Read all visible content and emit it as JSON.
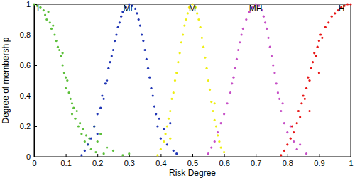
{
  "chart_data": {
    "type": "scatter",
    "x_label": "Risk Degree",
    "y_label": "Degree of membership",
    "xlim": [
      0,
      1
    ],
    "ylim": [
      0,
      1
    ],
    "xticks": [
      0,
      0.1,
      0.2,
      0.3,
      0.4,
      0.5,
      0.6,
      0.7,
      0.8,
      0.9,
      1
    ],
    "yticks": [
      0,
      0.2,
      0.4,
      0.6,
      0.8,
      1
    ],
    "marker": "circle",
    "series": [
      {
        "name": "L",
        "color": "#5cbf3a",
        "x": [
          0,
          0.01,
          0.02,
          0.03,
          0.035,
          0.04,
          0.045,
          0.05,
          0.055,
          0.06,
          0.065,
          0.07,
          0.075,
          0.08,
          0.085,
          0.09,
          0.09,
          0.095,
          0.1,
          0.1,
          0.105,
          0.11,
          0.115,
          0.12,
          0.12,
          0.125,
          0.13,
          0.135,
          0.14,
          0.145,
          0.15,
          0.155,
          0.16,
          0.165,
          0.17,
          0.175,
          0.18,
          0.19,
          0.195,
          0.2,
          0.21,
          0.22,
          0.23,
          0.25,
          0.28,
          0.3
        ],
        "values": [
          1,
          0.99,
          0.98,
          0.96,
          0.93,
          0.9,
          0.95,
          0.88,
          0.84,
          0.86,
          0.8,
          0.76,
          0.72,
          0.7,
          0.66,
          0.6,
          0.68,
          0.55,
          0.52,
          0.45,
          0.5,
          0.42,
          0.38,
          0.35,
          0.28,
          0.32,
          0.25,
          0.3,
          0.2,
          0.22,
          0.15,
          0.18,
          0.1,
          0.14,
          0.08,
          0.12,
          0.05,
          0.2,
          0.03,
          0.1,
          0.15,
          0.02,
          0.06,
          0.04,
          0.01,
          0.02
        ]
      },
      {
        "name": "ML",
        "color": "#1f35b5",
        "x": [
          0.15,
          0.16,
          0.17,
          0.18,
          0.19,
          0.2,
          0.2,
          0.21,
          0.215,
          0.22,
          0.225,
          0.23,
          0.235,
          0.24,
          0.245,
          0.25,
          0.255,
          0.26,
          0.265,
          0.27,
          0.275,
          0.28,
          0.29,
          0.3,
          0.31,
          0.32,
          0.325,
          0.33,
          0.335,
          0.34,
          0.345,
          0.35,
          0.355,
          0.36,
          0.365,
          0.37,
          0.375,
          0.38,
          0.385,
          0.39,
          0.395,
          0.4,
          0.41,
          0.42,
          0.43,
          0.44,
          0.45
        ],
        "values": [
          0.01,
          0.04,
          0.08,
          0.12,
          0.2,
          0.28,
          0.15,
          0.32,
          0.4,
          0.38,
          0.48,
          0.5,
          0.58,
          0.62,
          0.66,
          0.7,
          0.76,
          0.8,
          0.85,
          0.88,
          0.92,
          0.95,
          0.98,
          1,
          0.99,
          0.97,
          0.94,
          0.9,
          0.86,
          0.8,
          0.76,
          0.7,
          0.64,
          0.58,
          0.52,
          0.45,
          0.4,
          0.33,
          0.28,
          0.2,
          0.25,
          0.12,
          0.18,
          0.08,
          0.22,
          0.04,
          0.02
        ]
      },
      {
        "name": "M",
        "color": "#eeee11",
        "x": [
          0.39,
          0.4,
          0.41,
          0.415,
          0.42,
          0.425,
          0.43,
          0.435,
          0.44,
          0.445,
          0.45,
          0.455,
          0.46,
          0.465,
          0.47,
          0.475,
          0.48,
          0.485,
          0.49,
          0.5,
          0.51,
          0.515,
          0.52,
          0.525,
          0.53,
          0.535,
          0.54,
          0.545,
          0.55,
          0.555,
          0.56,
          0.565,
          0.57,
          0.575,
          0.58,
          0.585,
          0.59,
          0.6,
          0.43,
          0.57
        ],
        "values": [
          0.01,
          0.05,
          0.1,
          0.15,
          0.2,
          0.25,
          0.3,
          0.38,
          0.42,
          0.5,
          0.55,
          0.62,
          0.68,
          0.75,
          0.8,
          0.86,
          0.9,
          0.94,
          0.98,
          1,
          0.98,
          0.94,
          0.9,
          0.85,
          0.78,
          0.72,
          0.65,
          0.58,
          0.5,
          0.44,
          0.36,
          0.3,
          0.24,
          0.2,
          0.14,
          0.1,
          0.06,
          0.03,
          0.12,
          0.35
        ]
      },
      {
        "name": "MH",
        "color": "#c64ec6",
        "x": [
          0.55,
          0.56,
          0.57,
          0.58,
          0.59,
          0.6,
          0.61,
          0.62,
          0.625,
          0.63,
          0.635,
          0.64,
          0.645,
          0.65,
          0.655,
          0.66,
          0.67,
          0.68,
          0.69,
          0.7,
          0.71,
          0.72,
          0.725,
          0.73,
          0.735,
          0.74,
          0.745,
          0.75,
          0.755,
          0.76,
          0.765,
          0.77,
          0.775,
          0.78,
          0.785,
          0.79,
          0.8,
          0.81,
          0.82,
          0.83,
          0.84,
          0.86
        ],
        "values": [
          0.02,
          0.06,
          0.1,
          0.16,
          0.22,
          0.28,
          0.35,
          0.42,
          0.48,
          0.52,
          0.58,
          0.64,
          0.7,
          0.75,
          0.8,
          0.84,
          0.9,
          0.95,
          0.98,
          1,
          0.99,
          0.96,
          0.92,
          0.88,
          0.84,
          0.78,
          0.72,
          0.66,
          0.6,
          0.55,
          0.48,
          0.42,
          0.38,
          0.3,
          0.35,
          0.22,
          0.16,
          0.2,
          0.1,
          0.05,
          0.08,
          0.02
        ]
      },
      {
        "name": "H",
        "color": "#e81515",
        "x": [
          0.78,
          0.79,
          0.8,
          0.81,
          0.815,
          0.82,
          0.83,
          0.835,
          0.84,
          0.845,
          0.85,
          0.855,
          0.86,
          0.865,
          0.87,
          0.875,
          0.88,
          0.885,
          0.89,
          0.895,
          0.9,
          0.905,
          0.91,
          0.92,
          0.93,
          0.94,
          0.95,
          0.96,
          0.97,
          0.98,
          0.99,
          1,
          0.87,
          0.9
        ],
        "values": [
          0.01,
          0.04,
          0.08,
          0.12,
          0.2,
          0.16,
          0.22,
          0.3,
          0.26,
          0.35,
          0.4,
          0.38,
          0.45,
          0.52,
          0.5,
          0.58,
          0.62,
          0.68,
          0.66,
          0.72,
          0.76,
          0.8,
          0.78,
          0.85,
          0.88,
          0.92,
          0.94,
          0.96,
          0.98,
          0.99,
          1,
          1,
          0.3,
          0.55
        ]
      }
    ]
  }
}
